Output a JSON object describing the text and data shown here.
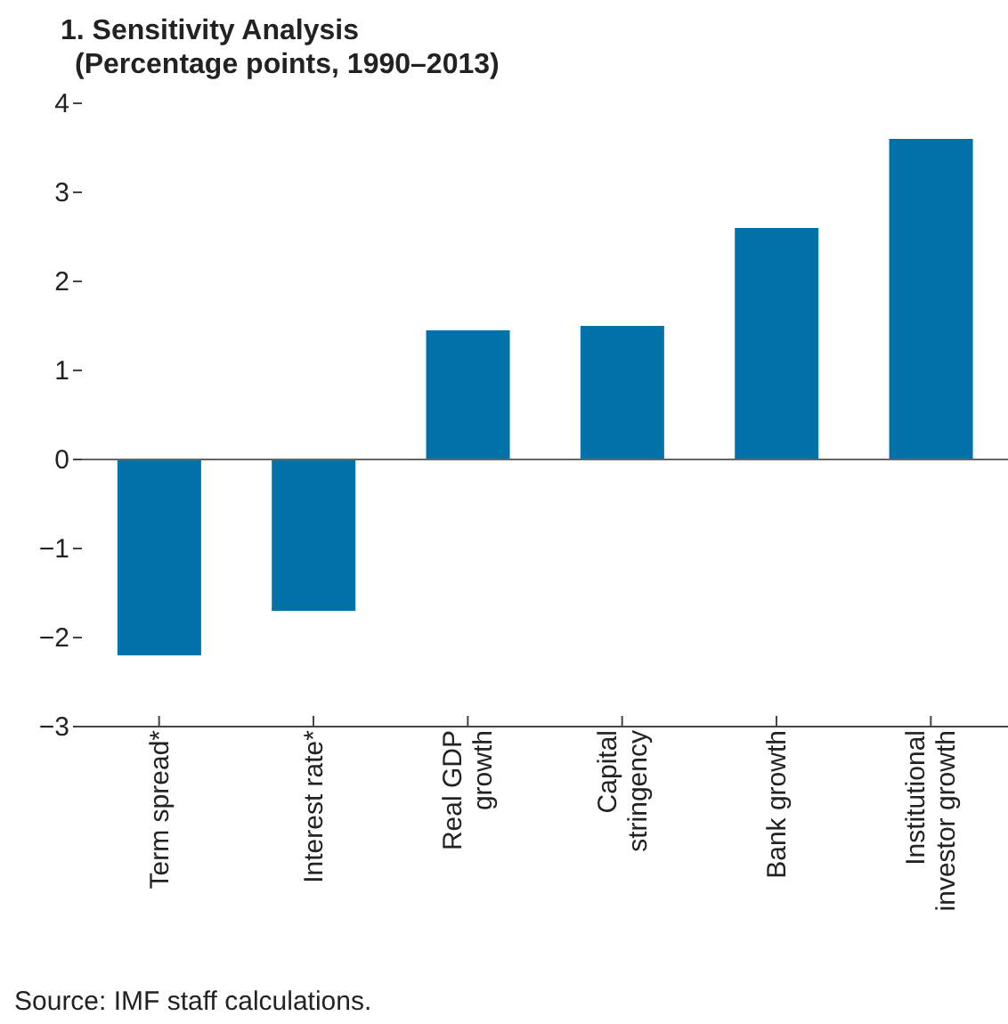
{
  "chart_data": {
    "type": "bar",
    "title": "1. Sensitivity Analysis",
    "subtitle": "(Percentage points, 1990–2013)",
    "categories": [
      "Term spread*",
      "Interest rate*",
      "Real GDP growth",
      "Capital stringency",
      "Bank growth",
      "Institutional investor growth"
    ],
    "values": [
      -2.2,
      -1.7,
      1.45,
      1.5,
      2.6,
      3.6
    ],
    "color": "#0071a9",
    "ylim": [
      -3,
      4
    ],
    "yticks": [
      {
        "value": -3,
        "label": "−3"
      },
      {
        "value": -2,
        "label": "−2"
      },
      {
        "value": -1,
        "label": "−1"
      },
      0,
      1,
      2,
      3,
      4
    ],
    "ref_lines": [
      {
        "axis": "y",
        "value": 0
      }
    ],
    "grid": false,
    "legend": false,
    "annotations": [
      "Source: IMF staff calculations."
    ]
  }
}
